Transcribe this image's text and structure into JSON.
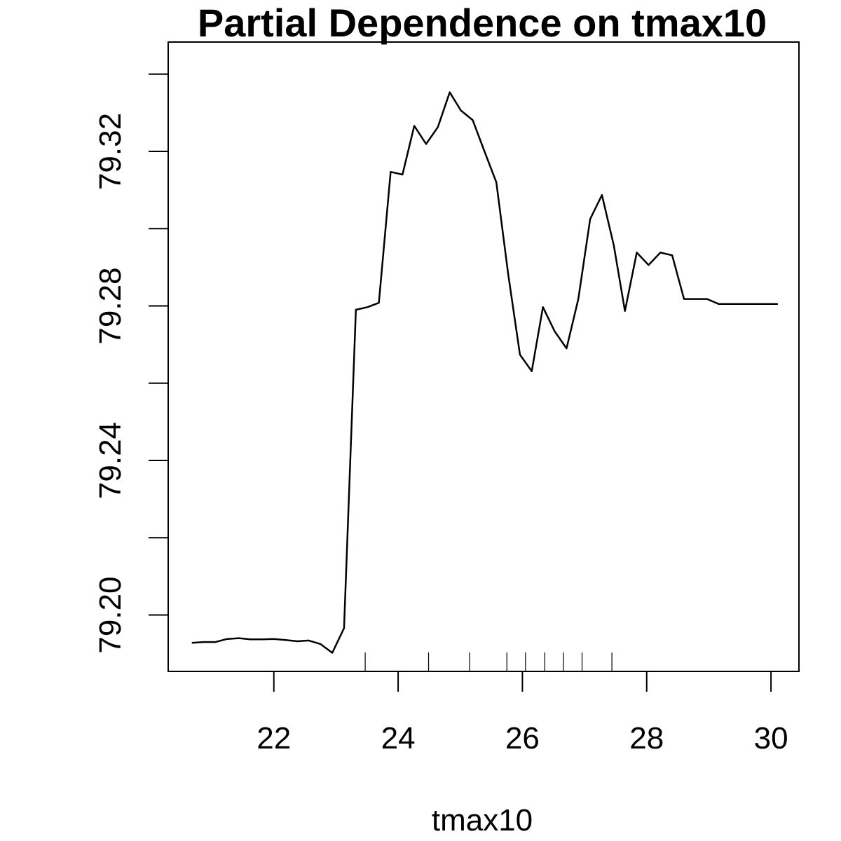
{
  "chart_data": {
    "type": "line",
    "title": "Partial Dependence on tmax10",
    "xlabel": "tmax10",
    "ylabel": "",
    "xlim": [
      20.3,
      30.45
    ],
    "ylim": [
      79.1854,
      79.3483
    ],
    "x_ticks": [
      22,
      24,
      26,
      28,
      30
    ],
    "x_tick_labels": [
      "22",
      "24",
      "26",
      "28",
      "30"
    ],
    "y_ticks": [
      79.2,
      79.22,
      79.24,
      79.26,
      79.28,
      79.3,
      79.32,
      79.34
    ],
    "y_tick_labels": [
      "79.20",
      "",
      "79.24",
      "",
      "79.28",
      "",
      "79.32",
      ""
    ],
    "grid": false,
    "legend": "none",
    "line_color": "#000000",
    "series": [
      {
        "x": [
          20.68,
          20.87,
          21.06,
          21.25,
          21.44,
          21.62,
          21.81,
          22.0,
          22.19,
          22.38,
          22.56,
          22.75,
          22.94,
          23.13,
          23.32,
          23.51,
          23.69,
          23.88,
          24.07,
          24.26,
          24.45,
          24.64,
          24.83,
          25.01,
          25.2,
          25.39,
          25.58,
          25.77,
          25.96,
          26.15,
          26.33,
          26.52,
          26.71,
          26.9,
          27.09,
          27.28,
          27.47,
          27.65,
          27.84,
          28.03,
          28.22,
          28.41,
          28.6,
          28.79,
          28.97,
          29.16,
          29.35,
          29.54,
          29.73,
          29.92,
          30.11
        ],
        "y": [
          79.1928,
          79.193,
          79.193,
          79.1938,
          79.194,
          79.1937,
          79.1937,
          79.1938,
          79.1935,
          79.1932,
          79.1934,
          79.1925,
          79.1902,
          79.1966,
          79.279,
          79.2797,
          79.2808,
          79.3147,
          79.314,
          79.3266,
          79.3219,
          79.3263,
          79.3353,
          79.3306,
          79.3281,
          79.32,
          79.312,
          79.2884,
          79.2674,
          79.2631,
          79.2797,
          79.2734,
          79.269,
          79.2818,
          79.3025,
          79.3087,
          79.2957,
          79.2787,
          79.2938,
          79.2906,
          79.2938,
          79.2931,
          79.2818,
          79.2818,
          79.2818,
          79.2805,
          79.2805,
          79.2805,
          79.2805,
          79.2805,
          79.2805
        ]
      }
    ],
    "rug_x": [
      23.47,
      24.49,
      25.15,
      25.75,
      26.05,
      26.36,
      26.66,
      26.96,
      27.44
    ]
  }
}
